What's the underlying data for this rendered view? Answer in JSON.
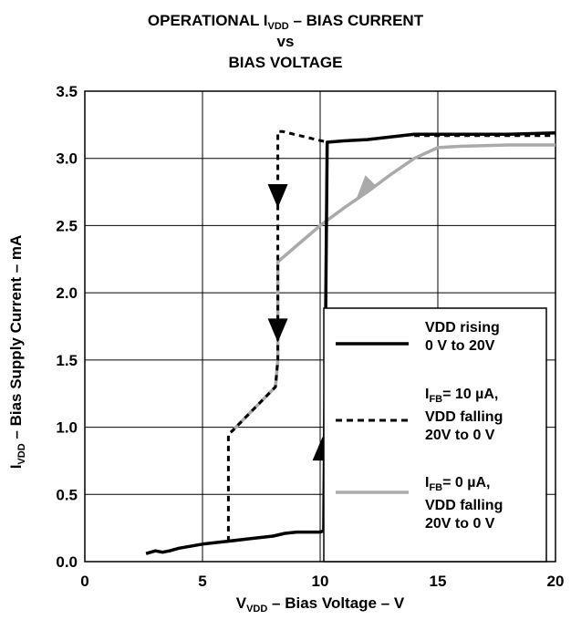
{
  "title": {
    "line1_pre": "OPERATIONAL I",
    "line1_sub": "VDD",
    "line1_post": " – BIAS CURRENT",
    "line2": "vs",
    "line3": "BIAS VOLTAGE"
  },
  "axes": {
    "xlabel_pre": "V",
    "xlabel_sub": "VDD",
    "xlabel_post": " – Bias Voltage –  V",
    "ylabel_pre": "I",
    "ylabel_sub": "VDD",
    "ylabel_post": " – Bias Supply Current – mA"
  },
  "legend": {
    "entries": [
      {
        "line1": "VDD rising",
        "line2": "0 V to 20V",
        "line3": ""
      },
      {
        "line1_pre": "I",
        "line1_sub": "FB",
        "line1_post": "= 10 µA,",
        "line2": "VDD falling",
        "line3": "20V to 0 V"
      },
      {
        "line1_pre": "I",
        "line1_sub": "FB",
        "line1_post": "= 0 µA,",
        "line2": "VDD falling",
        "line3": "20V to 0 V"
      }
    ]
  },
  "chart_data": {
    "type": "line",
    "xlim": [
      0,
      20
    ],
    "ylim": [
      0,
      3.5
    ],
    "xticks": [
      0,
      5,
      10,
      15,
      20
    ],
    "yticks": [
      0.0,
      0.5,
      1.0,
      1.5,
      2.0,
      2.5,
      3.0,
      3.5
    ],
    "xtick_labels": [
      "0",
      "5",
      "10",
      "15",
      "20"
    ],
    "ytick_labels": [
      "0.0",
      "0.5",
      "1.0",
      "1.5",
      "2.0",
      "2.5",
      "3.0",
      "3.5"
    ],
    "grid": true,
    "legend_position": "lower-right",
    "series": [
      {
        "style": "solid",
        "color": "#000000",
        "x": [
          2.6,
          3.0,
          3.3,
          3.6,
          4.0,
          5.0,
          6.0,
          7.0,
          8.0,
          8.5,
          9.0,
          10.0,
          10.15,
          10.3,
          11.0,
          12.0,
          14.0,
          16.0,
          18.0,
          20.0
        ],
        "y": [
          0.06,
          0.08,
          0.07,
          0.08,
          0.1,
          0.13,
          0.15,
          0.17,
          0.19,
          0.21,
          0.22,
          0.22,
          0.23,
          3.12,
          3.13,
          3.14,
          3.18,
          3.18,
          3.18,
          3.19
        ]
      },
      {
        "style": "dashed",
        "color": "#000000",
        "x": [
          6.1,
          6.1,
          6.25,
          8.1,
          8.2,
          8.2,
          8.4,
          10.3
        ],
        "y": [
          0.15,
          0.95,
          0.97,
          1.3,
          1.5,
          3.2,
          3.2,
          3.12
        ]
      },
      {
        "style": "solid",
        "color": "#aaaaaa",
        "x": [
          6.25,
          8.1,
          8.2,
          8.2,
          9.0,
          10.0,
          11.0,
          12.0,
          13.0,
          14.0,
          15.0,
          16.0,
          18.0,
          20.0
        ],
        "y": [
          0.97,
          1.3,
          1.5,
          2.23,
          2.35,
          2.5,
          2.63,
          2.75,
          2.88,
          3.0,
          3.08,
          3.09,
          3.1,
          3.1
        ]
      },
      {
        "style": "dashed",
        "color": "#000000",
        "x": [
          14.0,
          20.0
        ],
        "y": [
          3.17,
          3.17
        ]
      }
    ],
    "arrows": [
      {
        "x": 8.2,
        "y": 2.72,
        "direction": "down",
        "color": "#000000"
      },
      {
        "x": 8.2,
        "y": 1.72,
        "direction": "down",
        "color": "#000000"
      },
      {
        "x": 10.1,
        "y": 0.84,
        "direction": "up",
        "color": "#000000"
      },
      {
        "x": 12.0,
        "y": 2.78,
        "direction": "down-left",
        "color": "#aaaaaa"
      }
    ]
  }
}
